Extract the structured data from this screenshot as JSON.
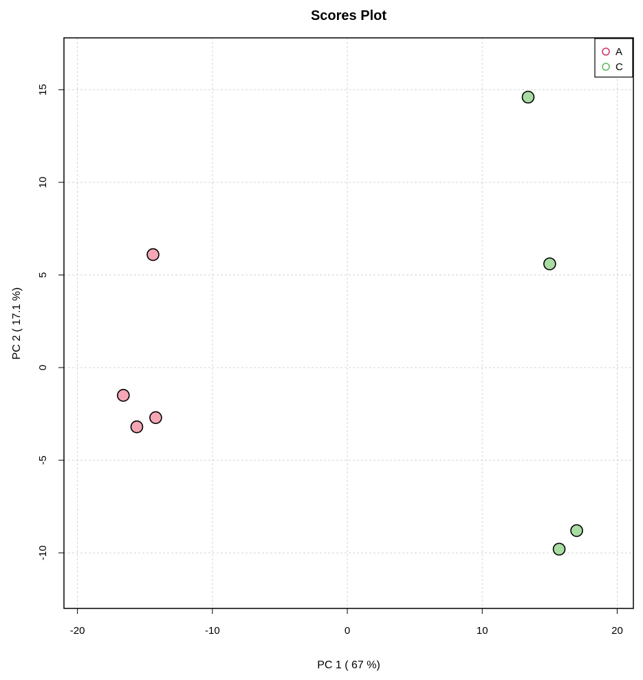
{
  "chart_data": {
    "type": "scatter",
    "title": "Scores Plot",
    "xlabel": "PC 1 ( 67 %)",
    "ylabel": "PC 2 ( 17.1 %)",
    "xlim": [
      -21,
      21.2
    ],
    "ylim": [
      -13,
      17.8
    ],
    "xticks": [
      -20,
      -10,
      0,
      10,
      20
    ],
    "yticks": [
      -10,
      -5,
      0,
      5,
      10,
      15
    ],
    "grid": true,
    "legend_position": "top-right",
    "series": [
      {
        "name": "A",
        "fill_color": "#f4a6b4",
        "legend_color": "#cc3366",
        "points": [
          {
            "x": -14.4,
            "y": 6.1
          },
          {
            "x": -16.6,
            "y": -1.5
          },
          {
            "x": -15.6,
            "y": -3.2
          },
          {
            "x": -14.2,
            "y": -2.7
          }
        ]
      },
      {
        "name": "C",
        "fill_color": "#a8dca3",
        "legend_color": "#5cb85c",
        "points": [
          {
            "x": 13.4,
            "y": 14.6
          },
          {
            "x": 15.0,
            "y": 5.6
          },
          {
            "x": 17.0,
            "y": -8.8
          },
          {
            "x": 15.7,
            "y": -9.8
          }
        ]
      }
    ]
  }
}
